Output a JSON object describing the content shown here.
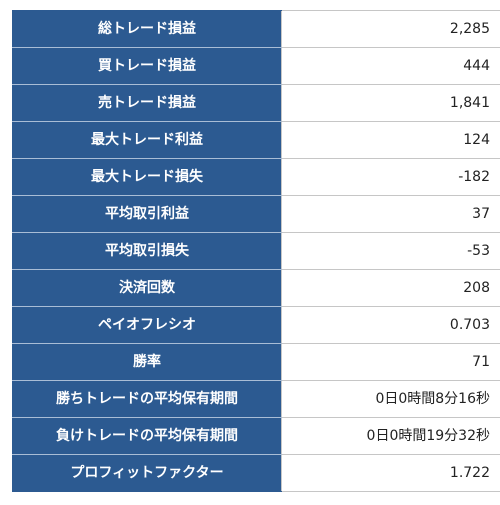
{
  "stats": [
    {
      "label": "総トレード損益",
      "value": "2,285"
    },
    {
      "label": "買トレード損益",
      "value": "444"
    },
    {
      "label": "売トレード損益",
      "value": "1,841"
    },
    {
      "label": "最大トレード利益",
      "value": "124"
    },
    {
      "label": "最大トレード損失",
      "value": "-182"
    },
    {
      "label": "平均取引利益",
      "value": "37"
    },
    {
      "label": "平均取引損失",
      "value": "-53"
    },
    {
      "label": "決済回数",
      "value": "208"
    },
    {
      "label": "ペイオフレシオ",
      "value": "0.703"
    },
    {
      "label": "勝率",
      "value": "71"
    },
    {
      "label": "勝ちトレードの平均保有期間",
      "value": "0日0時間8分16秒"
    },
    {
      "label": "負けトレードの平均保有期間",
      "value": "0日0時間19分32秒"
    },
    {
      "label": "プロフィットファクター",
      "value": "1.722"
    }
  ],
  "colors": {
    "label_bg": "#2c5a91",
    "label_text": "#ffffff",
    "value_bg": "#ffffff",
    "value_text": "#222222"
  }
}
